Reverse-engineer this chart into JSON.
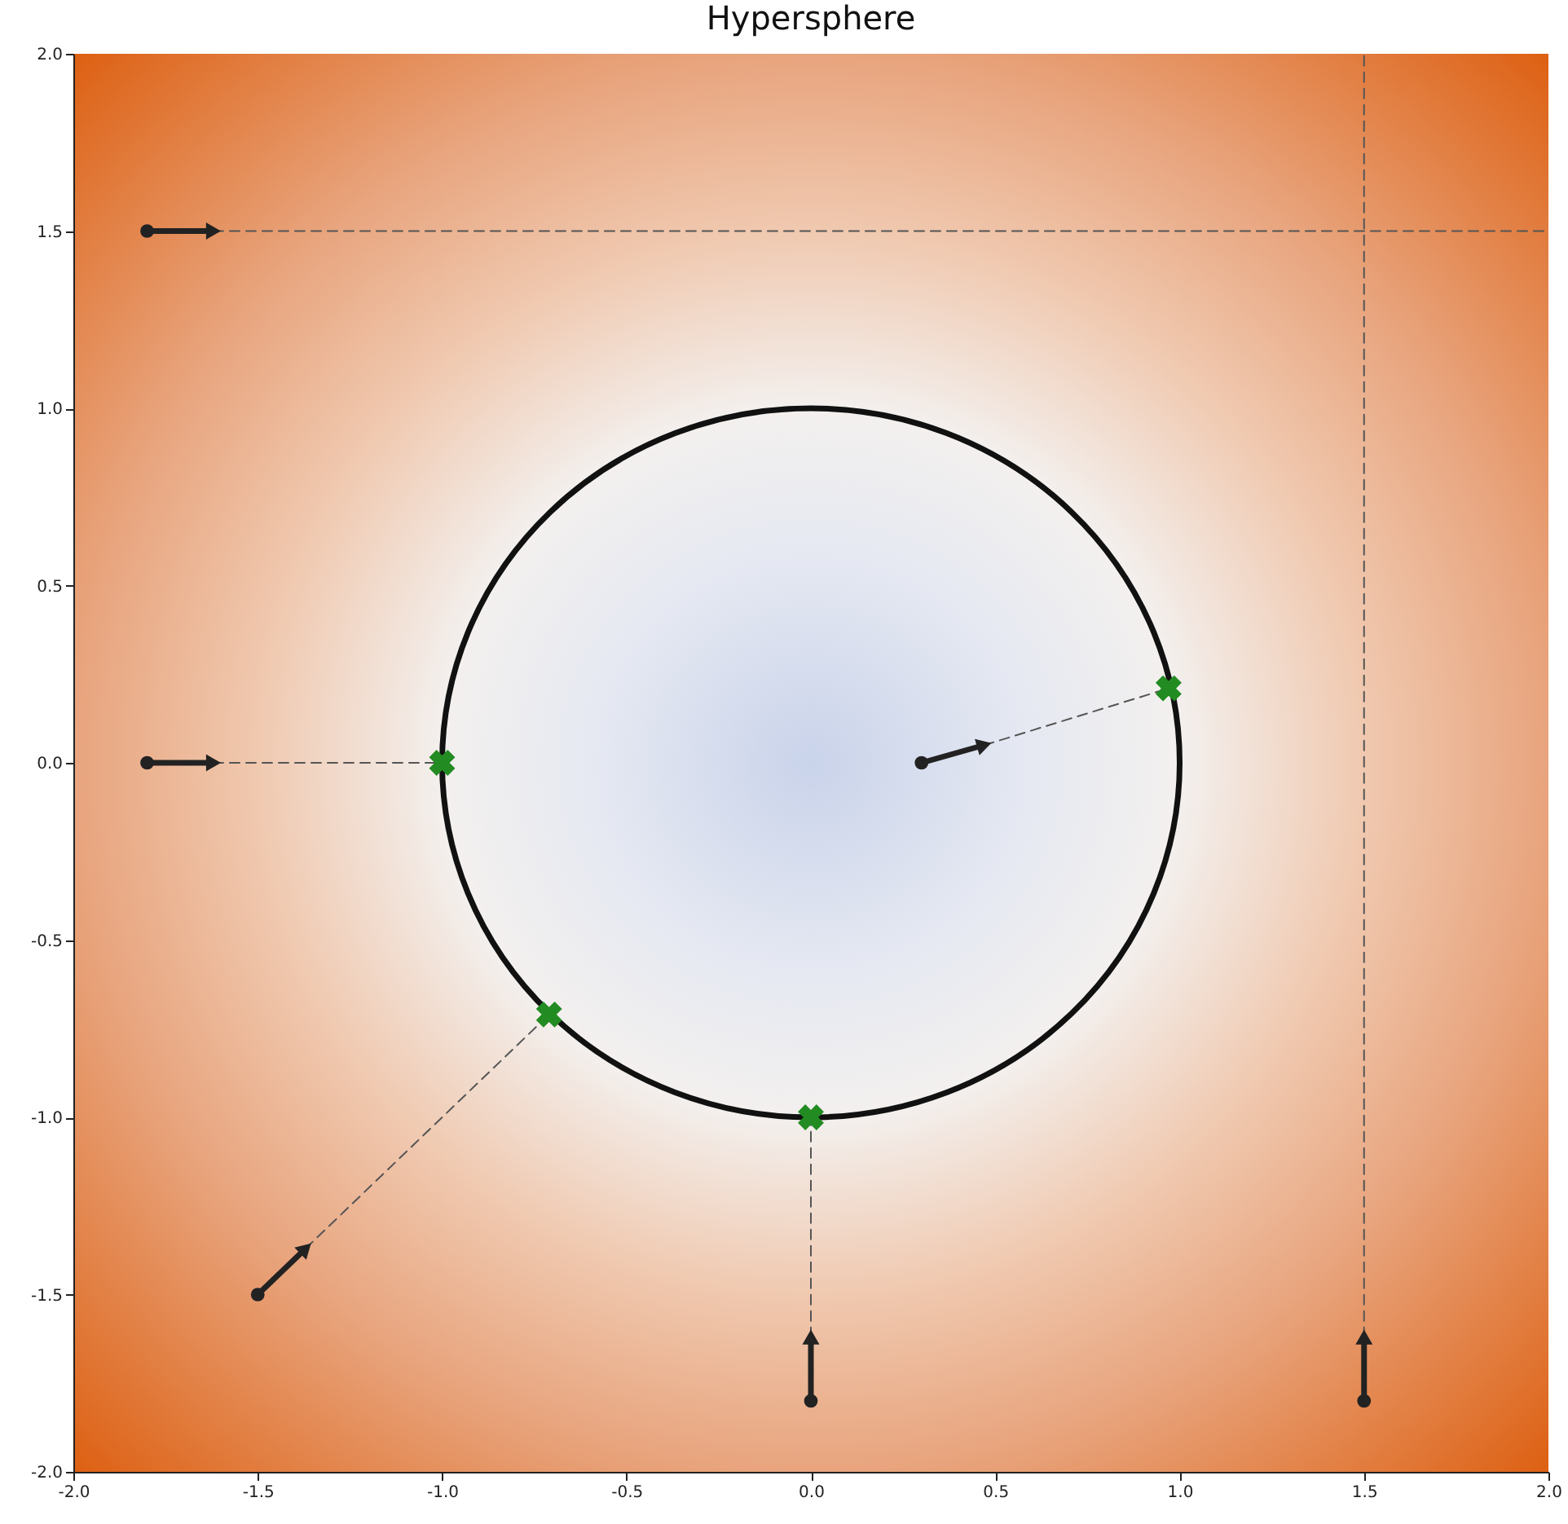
{
  "chart_data": {
    "type": "scatter",
    "title": "Hypersphere",
    "xlim": [
      -2,
      2
    ],
    "ylim": [
      -2,
      2
    ],
    "xticks": [
      {
        "value": -2,
        "label": "-2.0"
      },
      {
        "value": -1.5,
        "label": "-1.5"
      },
      {
        "value": -1,
        "label": "-1.0"
      },
      {
        "value": -0.5,
        "label": "-0.5"
      },
      {
        "value": 0,
        "label": "0.0"
      },
      {
        "value": 0.5,
        "label": "0.5"
      },
      {
        "value": 1,
        "label": "1.0"
      },
      {
        "value": 1.5,
        "label": "1.5"
      },
      {
        "value": 2,
        "label": "2.0"
      }
    ],
    "yticks": [
      {
        "value": -2,
        "label": "-2.0"
      },
      {
        "value": -1.5,
        "label": "-1.5"
      },
      {
        "value": -1,
        "label": "-1.0"
      },
      {
        "value": -0.5,
        "label": "-0.5"
      },
      {
        "value": 0,
        "label": "0.0"
      },
      {
        "value": 0.5,
        "label": "0.5"
      },
      {
        "value": 1,
        "label": "1.0"
      },
      {
        "value": 1.5,
        "label": "1.5"
      },
      {
        "value": 2,
        "label": "2.0"
      }
    ],
    "series": [
      {
        "type": "line",
        "color": "#555555",
        "line_style": "dashed",
        "x": [
          -1.62,
          2
        ],
        "values": [
          1.5,
          1.5
        ]
      },
      {
        "type": "line",
        "color": "#555555",
        "line_style": "dashed",
        "x": [
          1.5,
          1.5
        ],
        "values": [
          -1.62,
          2
        ]
      },
      {
        "type": "line",
        "color": "#555555",
        "line_style": "dashed",
        "x": [
          -1.62,
          -1
        ],
        "values": [
          0,
          0
        ]
      },
      {
        "type": "line",
        "color": "#555555",
        "line_style": "dashed",
        "x": [
          0.47,
          0.97
        ],
        "values": [
          0.05,
          0.21
        ]
      },
      {
        "type": "line",
        "color": "#555555",
        "line_style": "dashed",
        "x": [
          -1.37,
          -0.71
        ],
        "values": [
          -1.37,
          -0.71
        ]
      },
      {
        "type": "line",
        "color": "#555555",
        "line_style": "dashed",
        "x": [
          0,
          0
        ],
        "values": [
          -1.62,
          -1
        ]
      },
      {
        "type": "line",
        "color": "#222222",
        "line_style": "solid",
        "x": [
          -1.8,
          -1.62
        ],
        "values": [
          1.5,
          1.5
        ]
      },
      {
        "type": "line",
        "color": "#222222",
        "line_style": "solid",
        "x": [
          -1.8,
          -1.62
        ],
        "values": [
          0,
          0
        ]
      },
      {
        "type": "line",
        "color": "#222222",
        "line_style": "solid",
        "x": [
          0.3,
          0.47
        ],
        "values": [
          0,
          0.05
        ]
      },
      {
        "type": "line",
        "color": "#222222",
        "line_style": "solid",
        "x": [
          -1.5,
          -1.37
        ],
        "values": [
          -1.5,
          -1.37
        ]
      },
      {
        "type": "line",
        "color": "#222222",
        "line_style": "solid",
        "x": [
          0,
          0
        ],
        "values": [
          -1.8,
          -1.62
        ]
      },
      {
        "type": "line",
        "color": "#222222",
        "line_style": "solid",
        "x": [
          1.5,
          1.5
        ],
        "values": [
          -1.8,
          -1.62
        ]
      },
      {
        "type": "scatter",
        "color": "#222222",
        "marker": "circle",
        "x": [
          -1.8,
          -1.8,
          0.3,
          -1.5,
          0,
          1.5
        ],
        "values": [
          1.5,
          0,
          0,
          -1.5,
          -1.8,
          -1.8
        ]
      },
      {
        "type": "scatter",
        "color": "#228b22",
        "marker": "cross",
        "x": [
          -1,
          0.97,
          -0.71,
          0
        ],
        "values": [
          0,
          0.21,
          -0.71,
          -1
        ]
      }
    ]
  }
}
